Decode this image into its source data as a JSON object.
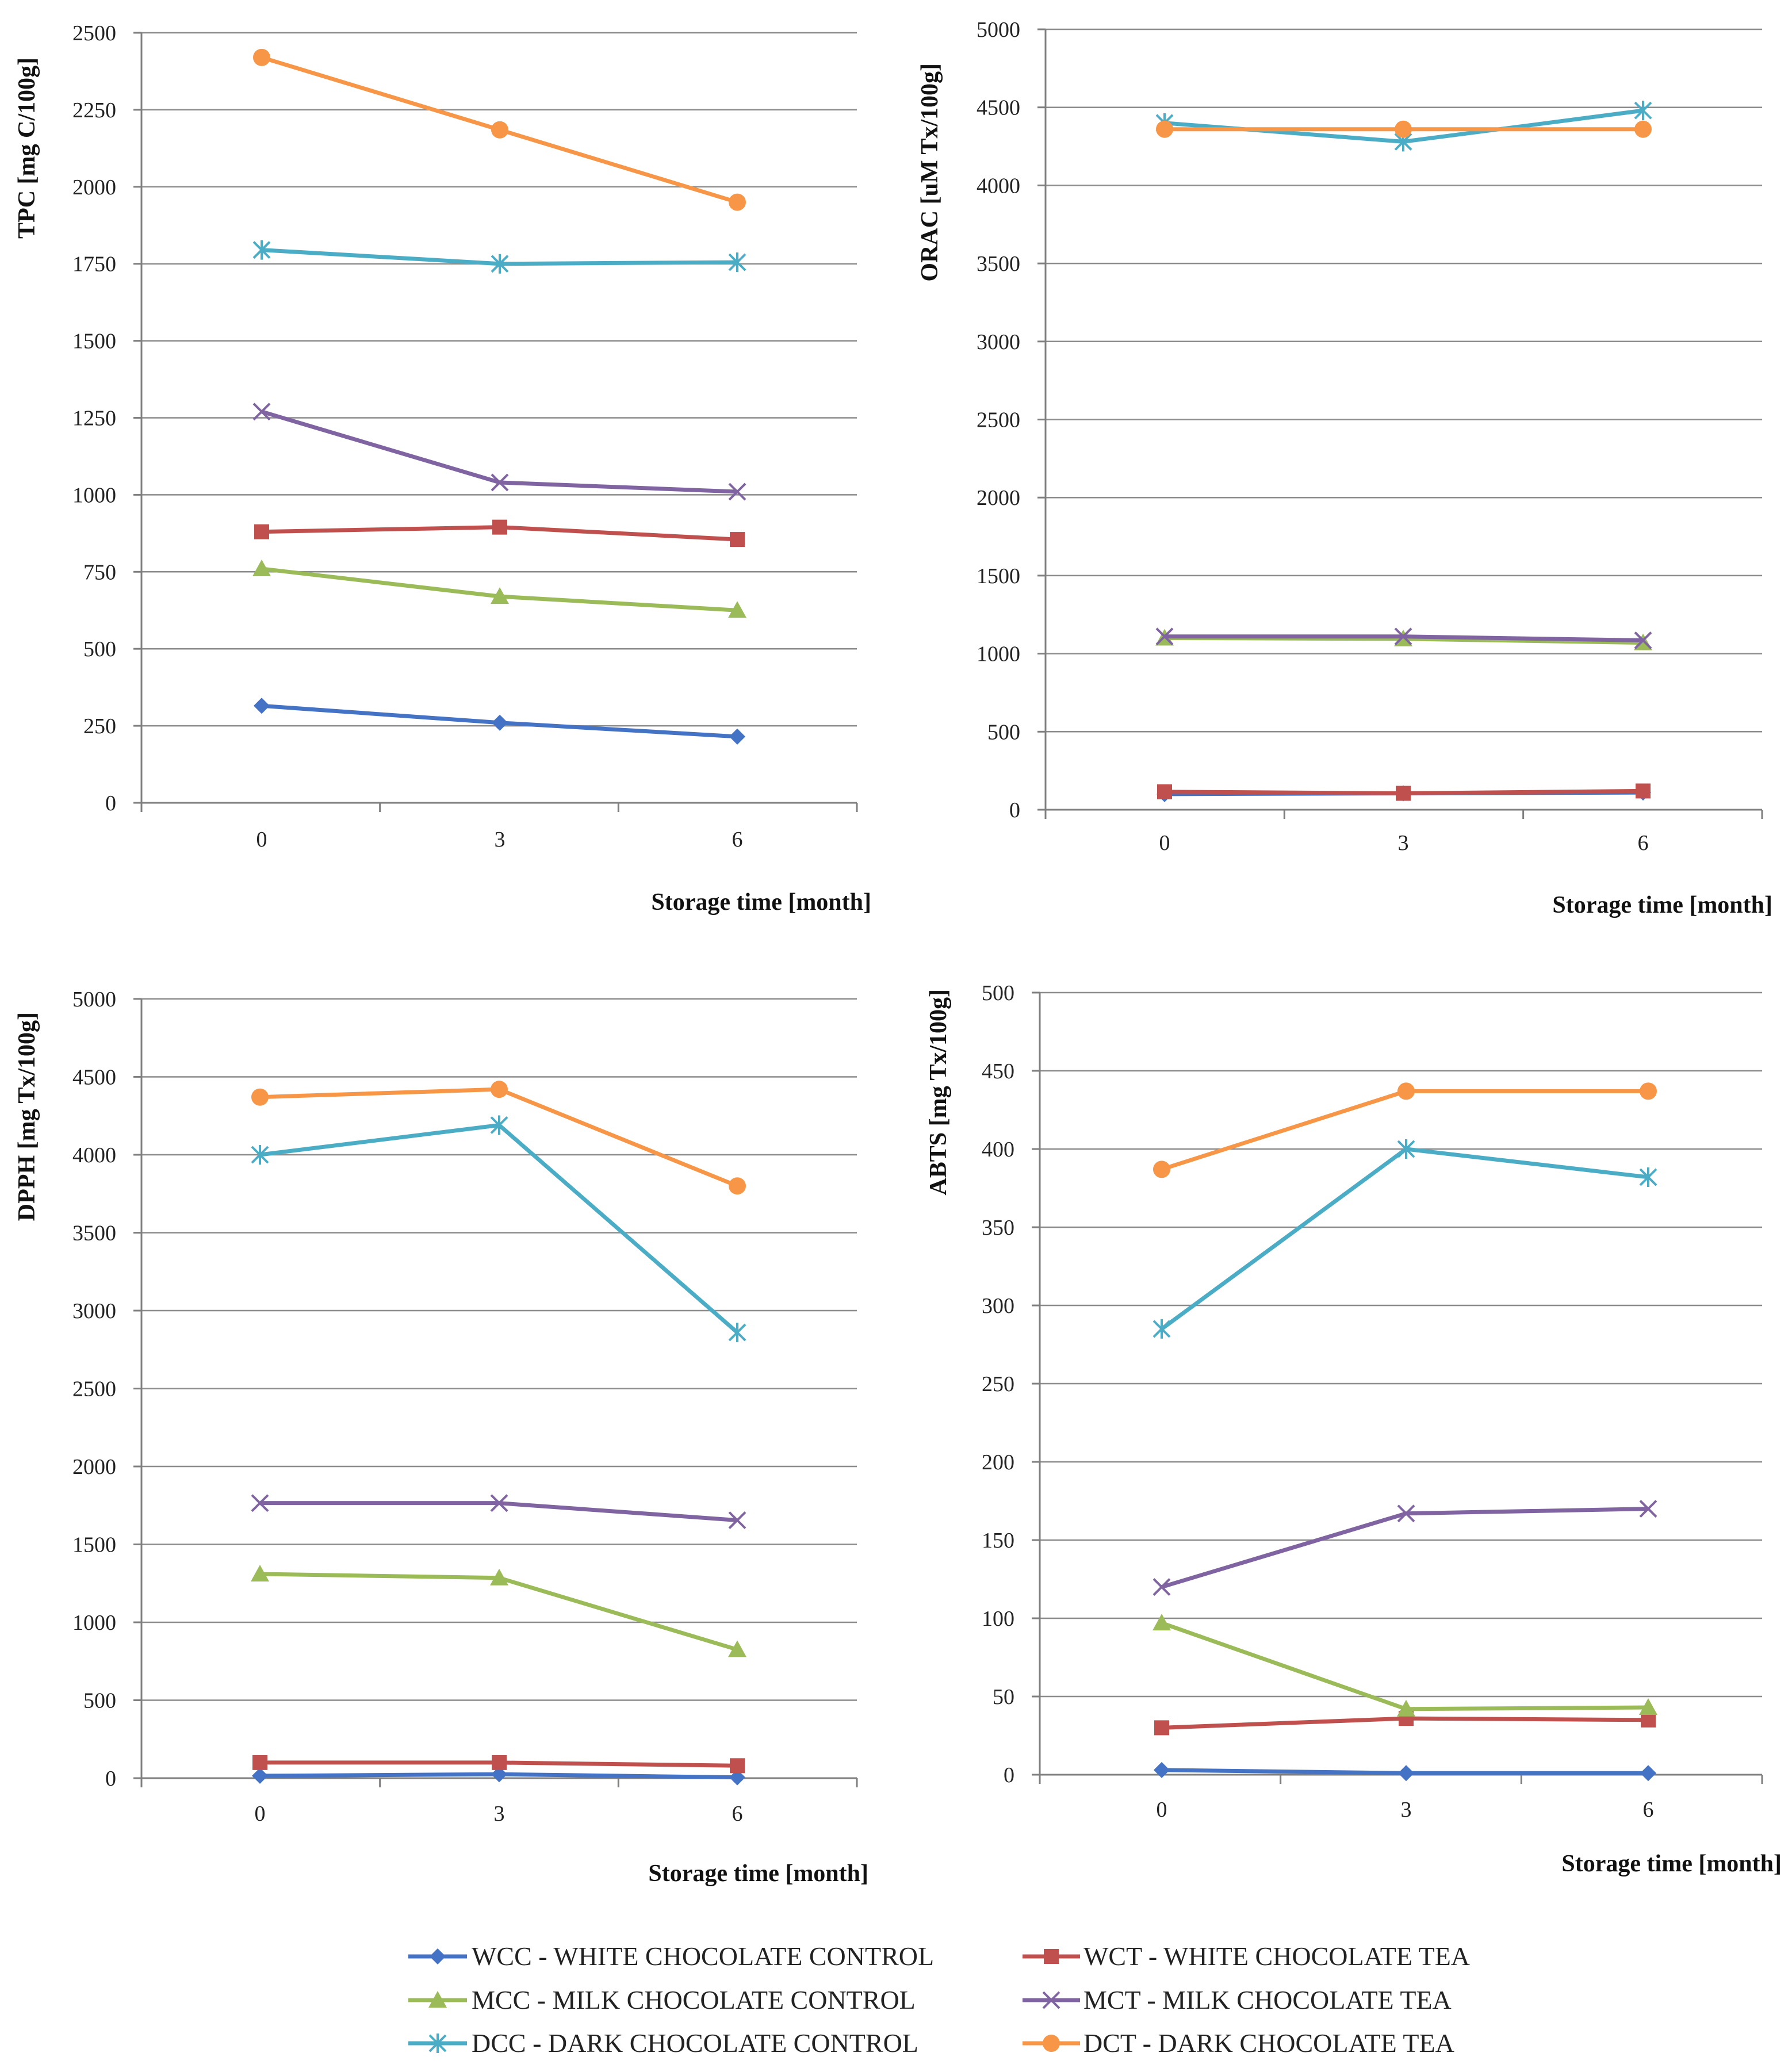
{
  "series_meta": [
    {
      "key": "WCC",
      "abbr": "WCC",
      "label": "WCC  - WHITE CHOCOLATE CONTROL",
      "color": "#4472C4",
      "marker": "diamond"
    },
    {
      "key": "WCT",
      "abbr": "WCT",
      "label": "WCT  - WHITE CHOCOLATE TEA",
      "color": "#C0504D",
      "marker": "square"
    },
    {
      "key": "MCC",
      "abbr": "MCC",
      "label": "MCC  - MILK CHOCOLATE CONTROL",
      "color": "#9BBB59",
      "marker": "triangle"
    },
    {
      "key": "MCT",
      "abbr": "MCT",
      "label": "MCT  - MILK CHOCOLATE TEA",
      "color": "#8064A2",
      "marker": "x"
    },
    {
      "key": "DCC",
      "abbr": "DCC",
      "label": "DCC  - DARK CHOCOLATE CONTROL",
      "color": "#4BACC6",
      "marker": "star"
    },
    {
      "key": "DCT",
      "abbr": "DCT",
      "label": "DCT  - DARK CHOCOLATE TEA",
      "color": "#F79646",
      "marker": "circle"
    }
  ],
  "chart_data": [
    {
      "type": "line",
      "title": "",
      "ylabel": "TPC [mg C/100g]",
      "xlabel": "Storage time [month]",
      "categories": [
        "0",
        "3",
        "6"
      ],
      "ylim": [
        0,
        2500
      ],
      "yticks": [
        0,
        250,
        500,
        750,
        1000,
        1250,
        1500,
        1750,
        2000,
        2250,
        2500
      ],
      "grid": true,
      "series": [
        {
          "name": "WCC",
          "values": [
            315,
            260,
            215
          ]
        },
        {
          "name": "WCT",
          "values": [
            880,
            895,
            855
          ]
        },
        {
          "name": "MCC",
          "values": [
            760,
            670,
            625
          ]
        },
        {
          "name": "MCT",
          "values": [
            1270,
            1040,
            1010
          ]
        },
        {
          "name": "DCC",
          "values": [
            1795,
            1750,
            1755
          ]
        },
        {
          "name": "DCT",
          "values": [
            2420,
            2185,
            1950
          ]
        }
      ]
    },
    {
      "type": "line",
      "title": "",
      "ylabel": "ORAC [uM Tx/100g]",
      "xlabel": "Storage time [month]",
      "categories": [
        "0",
        "3",
        "6"
      ],
      "ylim": [
        0,
        5000
      ],
      "yticks": [
        0,
        500,
        1000,
        1500,
        2000,
        2500,
        3000,
        3500,
        4000,
        4500,
        5000
      ],
      "grid": true,
      "series": [
        {
          "name": "WCC",
          "values": [
            100,
            105,
            110
          ]
        },
        {
          "name": "WCT",
          "values": [
            115,
            105,
            120
          ]
        },
        {
          "name": "MCC",
          "values": [
            1100,
            1095,
            1070
          ]
        },
        {
          "name": "MCT",
          "values": [
            1110,
            1110,
            1085
          ]
        },
        {
          "name": "DCC",
          "values": [
            4400,
            4280,
            4480
          ]
        },
        {
          "name": "DCT",
          "values": [
            4360,
            4360,
            4360
          ]
        }
      ]
    },
    {
      "type": "line",
      "title": "",
      "ylabel": "DPPH [mg Tx/100g]",
      "xlabel": "Storage time [month]",
      "categories": [
        "0",
        "3",
        "6"
      ],
      "ylim": [
        0,
        5000
      ],
      "yticks": [
        0,
        500,
        1000,
        1500,
        2000,
        2500,
        3000,
        3500,
        4000,
        4500,
        5000
      ],
      "grid": true,
      "series": [
        {
          "name": "WCC",
          "values": [
            15,
            25,
            5
          ]
        },
        {
          "name": "WCT",
          "values": [
            100,
            100,
            80
          ]
        },
        {
          "name": "MCC",
          "values": [
            1310,
            1285,
            825
          ]
        },
        {
          "name": "MCT",
          "values": [
            1765,
            1765,
            1655
          ]
        },
        {
          "name": "DCC",
          "values": [
            4000,
            4190,
            2860
          ]
        },
        {
          "name": "DCT",
          "values": [
            4370,
            4420,
            3800
          ]
        }
      ]
    },
    {
      "type": "line",
      "title": "",
      "ylabel": "ABTS [mg Tx/100g]",
      "xlabel": "Storage time [month]",
      "categories": [
        "0",
        "3",
        "6"
      ],
      "ylim": [
        0,
        500
      ],
      "yticks": [
        0,
        50,
        100,
        150,
        200,
        250,
        300,
        350,
        400,
        450,
        500
      ],
      "grid": true,
      "series": [
        {
          "name": "WCC",
          "values": [
            3,
            1,
            1
          ]
        },
        {
          "name": "WCT",
          "values": [
            30,
            36,
            35
          ]
        },
        {
          "name": "MCC",
          "values": [
            97,
            42,
            43
          ]
        },
        {
          "name": "MCT",
          "values": [
            120,
            167,
            170
          ]
        },
        {
          "name": "DCC",
          "values": [
            285,
            400,
            382
          ]
        },
        {
          "name": "DCT",
          "values": [
            387,
            437,
            437
          ]
        }
      ]
    }
  ]
}
